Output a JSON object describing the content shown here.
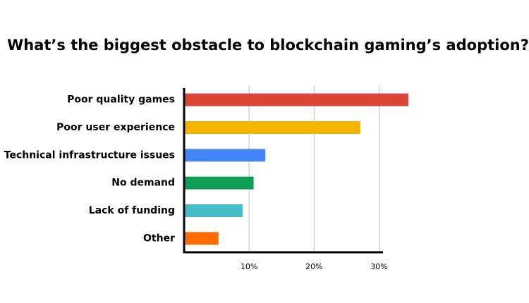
{
  "chart_data": {
    "type": "bar",
    "orientation": "horizontal",
    "title": "What’s the biggest obstacle to blockchain gaming’s adoption?",
    "categories": [
      "Poor quality games",
      "Poor user experience",
      "Technical infrastructure issues",
      "No demand",
      "Lack of funding",
      "Other"
    ],
    "values": [
      34.5,
      27.1,
      12.5,
      10.7,
      9.0,
      5.3
    ],
    "colors": [
      "#db4437",
      "#f4b400",
      "#4285f4",
      "#0f9d58",
      "#46bdc6",
      "#ff6d01"
    ],
    "xlim": [
      0,
      30.6
    ],
    "xticks": [
      {
        "value": 10,
        "label": "10%"
      },
      {
        "value": 20,
        "label": "20%"
      },
      {
        "value": 30,
        "label": "30%"
      }
    ],
    "grid": true
  }
}
